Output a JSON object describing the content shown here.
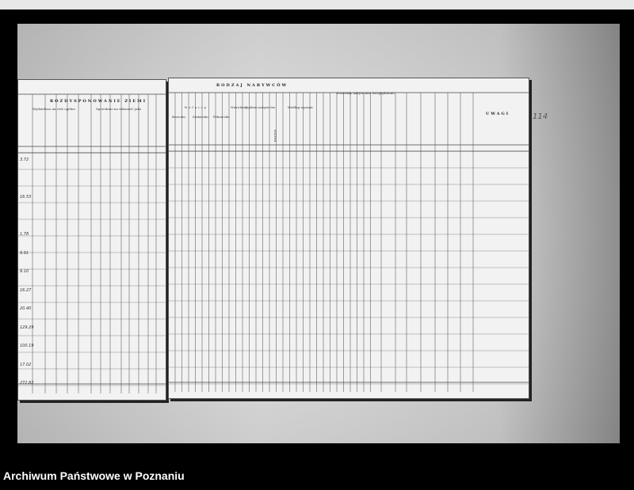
{
  "document": {
    "left_page": {
      "title": "ROZDYSPONOWANIE ZIEMI",
      "group1": "Wydzielono na cele ogólne",
      "group2": "Sprzedano na własność jako",
      "subheaders": [
        "Kopleno na własność Państwa",
        "Sprzedano instytucjom",
        "Kolonie samodzielne",
        "Kolonie dodatkowe",
        "Kolonie specjalne",
        "Parcele robotnicze"
      ],
      "rows": [
        "3.72",
        "",
        "16.53",
        "",
        "1.78",
        "9.91",
        "9.10",
        "16.27",
        "20.40",
        "129.29",
        "100.19",
        "17.02",
        "272.82"
      ]
    },
    "right_page": {
      "title": "RODZAJ NABYWCÓW",
      "group_rolnicy": "Rolnicy",
      "subheaders": [
        "Bezrolni",
        "Małorolni",
        "Pełnorolni",
        "Nierolnicy",
        "Ogółem nabywców",
        "Według wyznań"
      ],
      "razem": "RAZEM",
      "group_pozostali": "Pozostały nabywcami uwzględnione",
      "uwagi": "UWAGI",
      "page_number": "114"
    }
  },
  "caption": "Archiwum Państwowe w Poznaniu"
}
